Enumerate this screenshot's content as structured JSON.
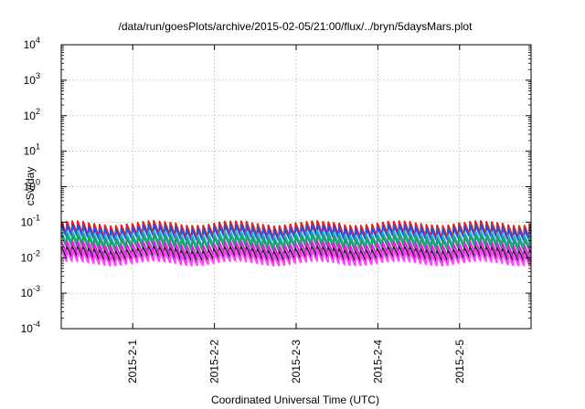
{
  "chart_data": {
    "type": "line",
    "title": "/data/run/goesPlots/archive/2015-02-05/21:00/flux/../bryn/5daysMars.plot",
    "xlabel": "Coordinated Universal Time (UTC)",
    "ylabel": "cSv/day",
    "y_scale": "log",
    "ylim_exponents": [
      -4,
      4
    ],
    "y_ticks": [
      {
        "base": "10",
        "exp": "4"
      },
      {
        "base": "10",
        "exp": "3"
      },
      {
        "base": "10",
        "exp": "2"
      },
      {
        "base": "10",
        "exp": "1"
      },
      {
        "base": "10",
        "exp": "0"
      },
      {
        "base": "10",
        "exp": "-1"
      },
      {
        "base": "10",
        "exp": "-2"
      },
      {
        "base": "10",
        "exp": "-3"
      },
      {
        "base": "10",
        "exp": "-4"
      }
    ],
    "x_range_days": [
      "2015-01-31 03:00",
      "2015-02-05 21:00"
    ],
    "x_ticks": [
      "2015-2-1",
      "2015-2-2",
      "2015-2-3",
      "2015-2-4",
      "2015-2-5"
    ],
    "grid": true,
    "legend": "none",
    "oscillation": {
      "period_hours": 1.6,
      "shape": "sawtooth-decay"
    },
    "series": [
      {
        "color": "#e8201a",
        "peak": 0.095,
        "trough": 0.04
      },
      {
        "color": "#2850e0",
        "peak": 0.075,
        "trough": 0.035
      },
      {
        "color": "#20b0c8",
        "peak": 0.05,
        "trough": 0.022
      },
      {
        "color": "#20a060",
        "peak": 0.04,
        "trough": 0.018
      },
      {
        "color": "#e020e0",
        "peak": 0.026,
        "trough": 0.012
      },
      {
        "color": "#202020",
        "peak": 0.018,
        "trough": 0.009
      },
      {
        "color": "#ff44ff",
        "peak": 0.015,
        "trough": 0.007
      }
    ]
  }
}
